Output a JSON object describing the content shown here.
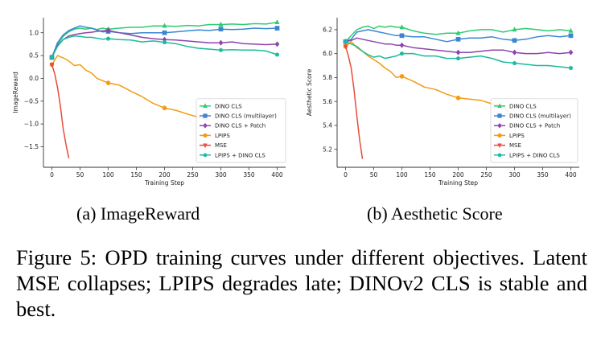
{
  "subcaptions": {
    "a": "(a) ImageReward",
    "b": "(b) Aesthetic Score"
  },
  "caption": "Figure 5: OPD training curves under different objectives. Latent MSE collapses; LPIPS degrades late; DINOv2 CLS is stable and best.",
  "chart_data": [
    {
      "type": "line",
      "xlabel": "Training Step",
      "ylabel": "ImageReward",
      "xlim": [
        -15,
        415
      ],
      "ylim": [
        -1.95,
        1.33
      ],
      "xticks": [
        0,
        50,
        100,
        150,
        200,
        250,
        300,
        350,
        400
      ],
      "xtick_labels": [
        "0",
        "50",
        "100",
        "150",
        "200",
        "250",
        "300",
        "350",
        "400"
      ],
      "yticks": [
        -1.5,
        -1.0,
        -0.5,
        0.0,
        0.5,
        1.0
      ],
      "ytick_labels": [
        "−1.5",
        "−1.0",
        "−0.5",
        "0.0",
        "0.5",
        "1.0"
      ],
      "grid": false,
      "legend_position": "lower-right",
      "series": [
        {
          "name": "DINO CLS",
          "color": "#2ecc71",
          "marker": "triangle",
          "x": [
            0,
            10,
            20,
            30,
            40,
            50,
            60,
            70,
            80,
            90,
            100,
            120,
            140,
            160,
            180,
            200,
            220,
            240,
            260,
            280,
            300,
            320,
            340,
            360,
            380,
            400
          ],
          "y": [
            0.46,
            0.75,
            0.92,
            1.02,
            1.08,
            1.1,
            1.08,
            1.1,
            1.07,
            1.1,
            1.08,
            1.1,
            1.12,
            1.12,
            1.15,
            1.15,
            1.14,
            1.16,
            1.15,
            1.18,
            1.18,
            1.19,
            1.18,
            1.2,
            1.19,
            1.23
          ],
          "marker_x": [
            0,
            100,
            200,
            300,
            400
          ]
        },
        {
          "name": "DINO CLS (multilayer)",
          "color": "#3b86d4",
          "marker": "square",
          "x": [
            0,
            10,
            20,
            30,
            40,
            50,
            60,
            70,
            80,
            90,
            100,
            120,
            140,
            160,
            180,
            200,
            220,
            240,
            260,
            280,
            300,
            320,
            340,
            360,
            380,
            400
          ],
          "y": [
            0.46,
            0.78,
            0.95,
            1.05,
            1.1,
            1.15,
            1.12,
            1.1,
            1.06,
            1.02,
            1.03,
            1.0,
            0.98,
            1.0,
            1.0,
            1.0,
            1.02,
            1.04,
            1.06,
            1.05,
            1.08,
            1.07,
            1.08,
            1.1,
            1.09,
            1.1
          ],
          "marker_x": [
            0,
            100,
            200,
            300,
            400
          ]
        },
        {
          "name": "DINO CLS + Patch",
          "color": "#8e44ad",
          "marker": "diamond",
          "x": [
            0,
            10,
            20,
            30,
            40,
            50,
            60,
            70,
            80,
            90,
            100,
            120,
            140,
            160,
            180,
            200,
            220,
            240,
            260,
            280,
            300,
            320,
            340,
            360,
            380,
            400
          ],
          "y": [
            0.46,
            0.72,
            0.85,
            0.93,
            0.96,
            0.98,
            1.0,
            1.01,
            1.03,
            1.04,
            1.05,
            1.0,
            0.95,
            0.9,
            0.87,
            0.85,
            0.84,
            0.82,
            0.8,
            0.78,
            0.78,
            0.8,
            0.76,
            0.75,
            0.74,
            0.75
          ],
          "marker_x": [
            0,
            100,
            200,
            300,
            400
          ]
        },
        {
          "name": "LPIPS",
          "color": "#f39c12",
          "marker": "circle",
          "x": [
            0,
            10,
            20,
            30,
            40,
            50,
            60,
            70,
            80,
            90,
            100,
            120,
            140,
            160,
            180,
            200,
            220,
            240,
            260,
            280
          ],
          "y": [
            0.3,
            0.5,
            0.45,
            0.38,
            0.28,
            0.3,
            0.18,
            0.12,
            0.0,
            -0.05,
            -0.1,
            -0.15,
            -0.28,
            -0.4,
            -0.55,
            -0.65,
            -0.7,
            -0.78,
            -0.85,
            -0.92
          ],
          "marker_x": [
            0,
            100,
            200
          ]
        },
        {
          "name": "MSE",
          "color": "#e74c3c",
          "marker": "triangle-down",
          "x": [
            0,
            5,
            10,
            15,
            20,
            25,
            30
          ],
          "y": [
            0.3,
            0.1,
            -0.2,
            -0.6,
            -1.1,
            -1.45,
            -1.75
          ],
          "marker_x": [
            0
          ]
        },
        {
          "name": "LPIPS + DINO CLS",
          "color": "#1abc9c",
          "marker": "pentagon",
          "x": [
            0,
            10,
            20,
            30,
            40,
            50,
            60,
            70,
            80,
            90,
            100,
            120,
            140,
            160,
            180,
            200,
            220,
            240,
            260,
            280,
            300,
            320,
            340,
            360,
            380,
            400
          ],
          "y": [
            0.46,
            0.7,
            0.85,
            0.9,
            0.93,
            0.92,
            0.9,
            0.9,
            0.88,
            0.86,
            0.87,
            0.85,
            0.84,
            0.8,
            0.82,
            0.79,
            0.76,
            0.7,
            0.66,
            0.64,
            0.62,
            0.63,
            0.62,
            0.62,
            0.6,
            0.52
          ],
          "marker_x": [
            0,
            100,
            200,
            300,
            400
          ]
        }
      ]
    },
    {
      "type": "line",
      "xlabel": "Training Step",
      "ylabel": "Aesthetic Score",
      "xlim": [
        -15,
        415
      ],
      "ylim": [
        5.05,
        6.3
      ],
      "xticks": [
        0,
        50,
        100,
        150,
        200,
        250,
        300,
        350,
        400
      ],
      "xtick_labels": [
        "0",
        "50",
        "100",
        "150",
        "200",
        "250",
        "300",
        "350",
        "400"
      ],
      "yticks": [
        5.2,
        5.4,
        5.6,
        5.8,
        6.0,
        6.2
      ],
      "ytick_labels": [
        "5.2",
        "5.4",
        "5.6",
        "5.8",
        "6.0",
        "6.2"
      ],
      "grid": false,
      "legend_position": "lower-right",
      "series": [
        {
          "name": "DINO CLS",
          "color": "#2ecc71",
          "marker": "triangle",
          "x": [
            0,
            10,
            20,
            30,
            40,
            50,
            60,
            70,
            80,
            90,
            100,
            120,
            140,
            160,
            180,
            200,
            220,
            240,
            260,
            280,
            300,
            320,
            340,
            360,
            380,
            400
          ],
          "y": [
            6.1,
            6.15,
            6.2,
            6.22,
            6.23,
            6.21,
            6.23,
            6.22,
            6.23,
            6.22,
            6.22,
            6.19,
            6.17,
            6.16,
            6.17,
            6.17,
            6.19,
            6.2,
            6.2,
            6.18,
            6.2,
            6.21,
            6.2,
            6.19,
            6.2,
            6.19
          ],
          "marker_x": [
            0,
            100,
            200,
            300,
            400
          ]
        },
        {
          "name": "DINO CLS (multilayer)",
          "color": "#3b86d4",
          "marker": "square",
          "x": [
            0,
            10,
            20,
            30,
            40,
            50,
            60,
            70,
            80,
            90,
            100,
            120,
            140,
            160,
            180,
            200,
            220,
            240,
            260,
            280,
            300,
            320,
            340,
            360,
            380,
            400
          ],
          "y": [
            6.1,
            6.12,
            6.18,
            6.19,
            6.2,
            6.19,
            6.18,
            6.17,
            6.16,
            6.15,
            6.15,
            6.14,
            6.14,
            6.12,
            6.1,
            6.12,
            6.13,
            6.13,
            6.14,
            6.12,
            6.11,
            6.12,
            6.14,
            6.15,
            6.14,
            6.15
          ],
          "marker_x": [
            0,
            100,
            200,
            300,
            400
          ]
        },
        {
          "name": "DINO CLS + Patch",
          "color": "#8e44ad",
          "marker": "diamond",
          "x": [
            0,
            10,
            20,
            30,
            40,
            50,
            60,
            70,
            80,
            90,
            100,
            120,
            140,
            160,
            180,
            200,
            220,
            240,
            260,
            280,
            300,
            320,
            340,
            360,
            380,
            400
          ],
          "y": [
            6.1,
            6.11,
            6.13,
            6.12,
            6.11,
            6.1,
            6.09,
            6.08,
            6.08,
            6.07,
            6.07,
            6.05,
            6.04,
            6.03,
            6.02,
            6.01,
            6.01,
            6.02,
            6.03,
            6.03,
            6.01,
            6.0,
            6.0,
            6.01,
            6.0,
            6.01
          ],
          "marker_x": [
            0,
            100,
            200,
            300,
            400
          ]
        },
        {
          "name": "LPIPS",
          "color": "#f39c12",
          "marker": "circle",
          "x": [
            0,
            10,
            20,
            30,
            40,
            50,
            60,
            70,
            80,
            90,
            100,
            120,
            140,
            160,
            180,
            200,
            220,
            240,
            260,
            280,
            290
          ],
          "y": [
            6.06,
            6.1,
            6.05,
            6.02,
            5.98,
            5.95,
            5.92,
            5.88,
            5.85,
            5.8,
            5.81,
            5.77,
            5.72,
            5.7,
            5.66,
            5.63,
            5.62,
            5.61,
            5.58,
            5.56,
            5.51
          ],
          "marker_x": [
            0,
            100,
            200
          ]
        },
        {
          "name": "MSE",
          "color": "#e74c3c",
          "marker": "triangle-down",
          "x": [
            0,
            5,
            10,
            15,
            20,
            25,
            30
          ],
          "y": [
            6.06,
            5.98,
            5.88,
            5.7,
            5.48,
            5.28,
            5.12
          ],
          "marker_x": [
            0
          ]
        },
        {
          "name": "LPIPS + DINO CLS",
          "color": "#1abc9c",
          "marker": "pentagon",
          "x": [
            0,
            10,
            20,
            30,
            40,
            50,
            60,
            70,
            80,
            90,
            100,
            120,
            140,
            160,
            180,
            200,
            220,
            240,
            260,
            280,
            300,
            320,
            340,
            360,
            380,
            400
          ],
          "y": [
            6.1,
            6.08,
            6.06,
            6.02,
            5.99,
            5.97,
            5.98,
            5.96,
            5.97,
            5.98,
            6.0,
            6.0,
            5.98,
            5.98,
            5.96,
            5.96,
            5.97,
            5.98,
            5.96,
            5.93,
            5.92,
            5.91,
            5.9,
            5.9,
            5.89,
            5.88
          ],
          "marker_x": [
            0,
            100,
            200,
            300,
            400
          ]
        }
      ]
    }
  ]
}
